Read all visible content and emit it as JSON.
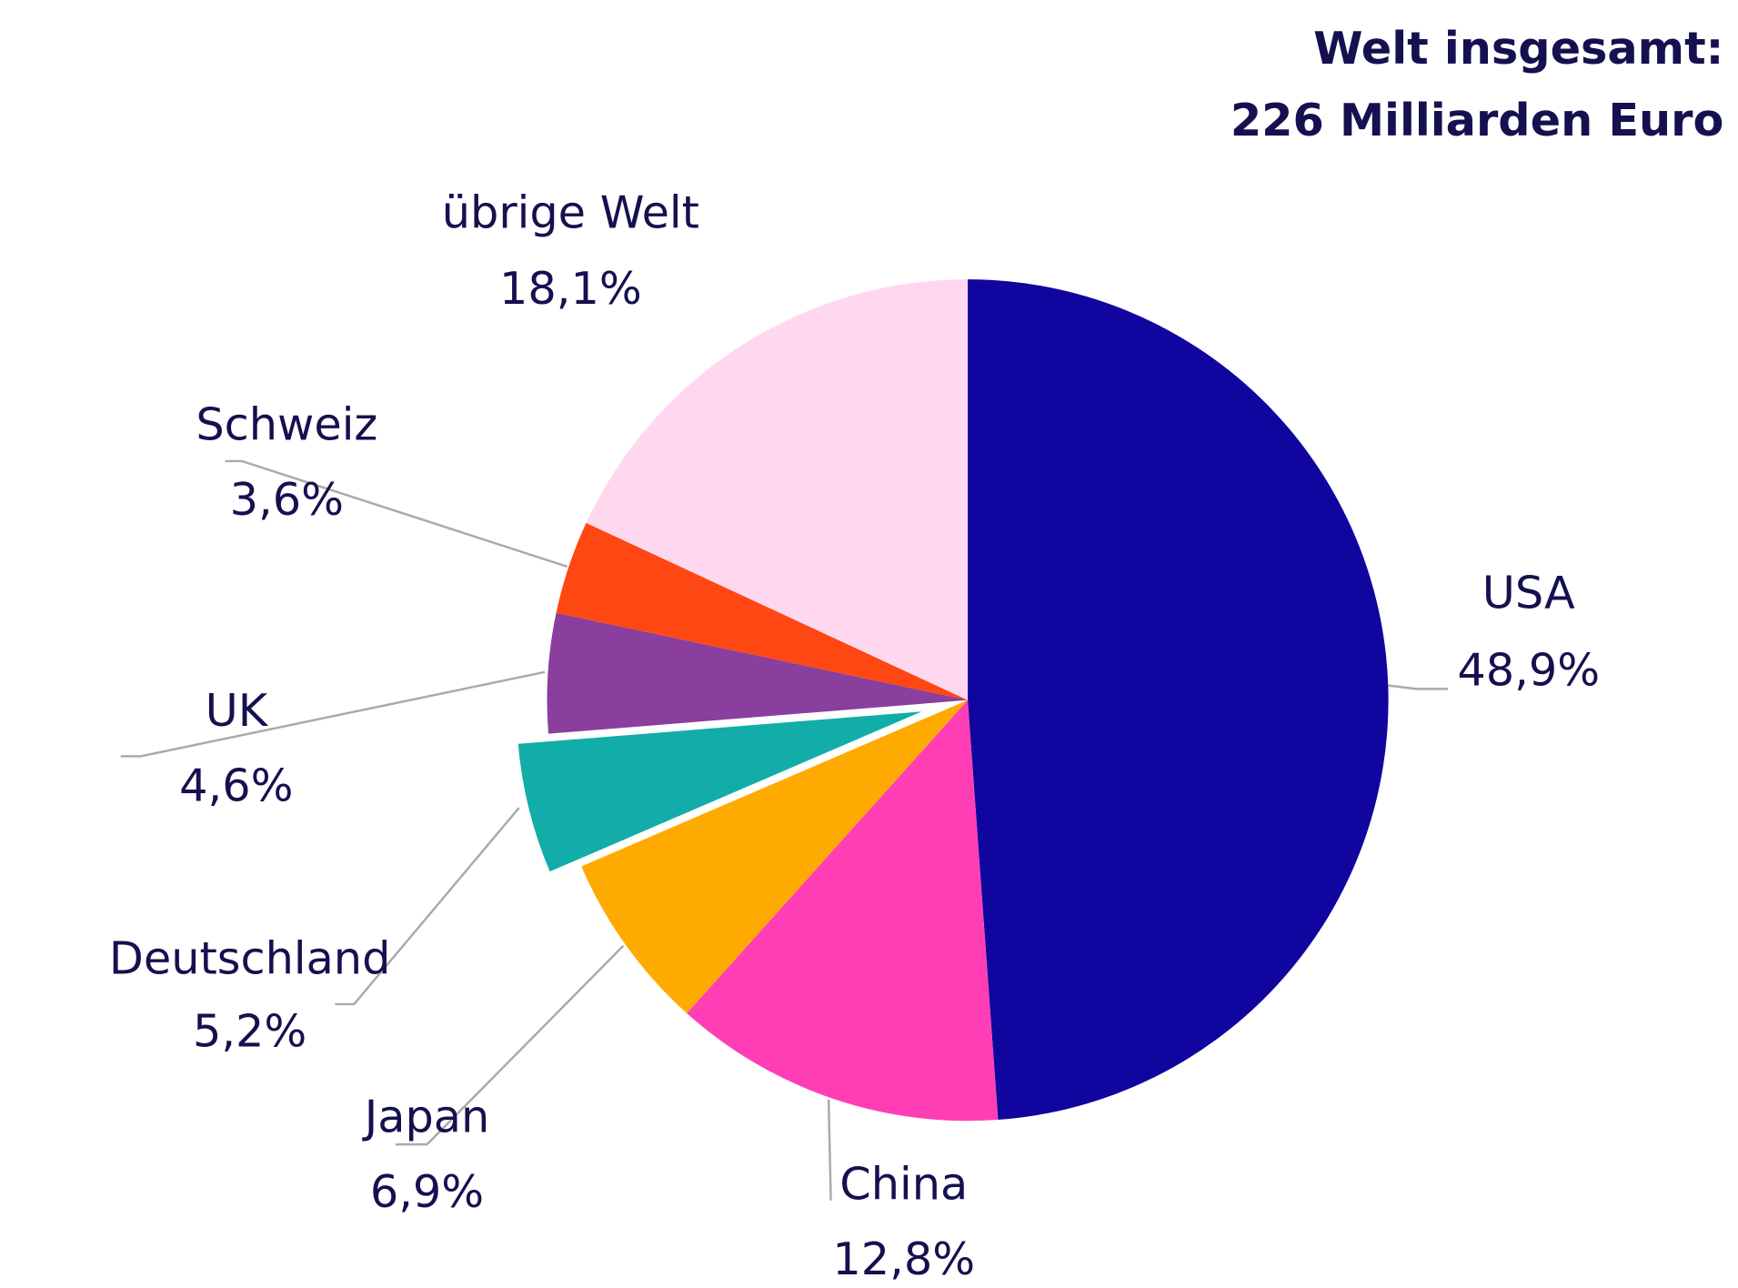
{
  "chart_data": {
    "type": "pie",
    "title": [
      "Welt insgesamt:",
      "226 Milliarden Euro"
    ],
    "categories": [
      "USA",
      "China",
      "Japan",
      "Deutschland",
      "UK",
      "Schweiz",
      "übrige Welt"
    ],
    "values": [
      48.9,
      12.8,
      6.9,
      5.2,
      4.6,
      3.6,
      18.1
    ],
    "value_labels": [
      "48,9%",
      "12,8%",
      "6,9%",
      "5,2%",
      "4,6%",
      "3,6%",
      "18,1%"
    ],
    "colors": [
      "#10069f",
      "#ff3eb5",
      "#ffaa00",
      "#12ada8",
      "#8a3e9e",
      "#ff4713",
      "#ffd8f0"
    ],
    "exploded": [
      "Deutschland"
    ]
  }
}
